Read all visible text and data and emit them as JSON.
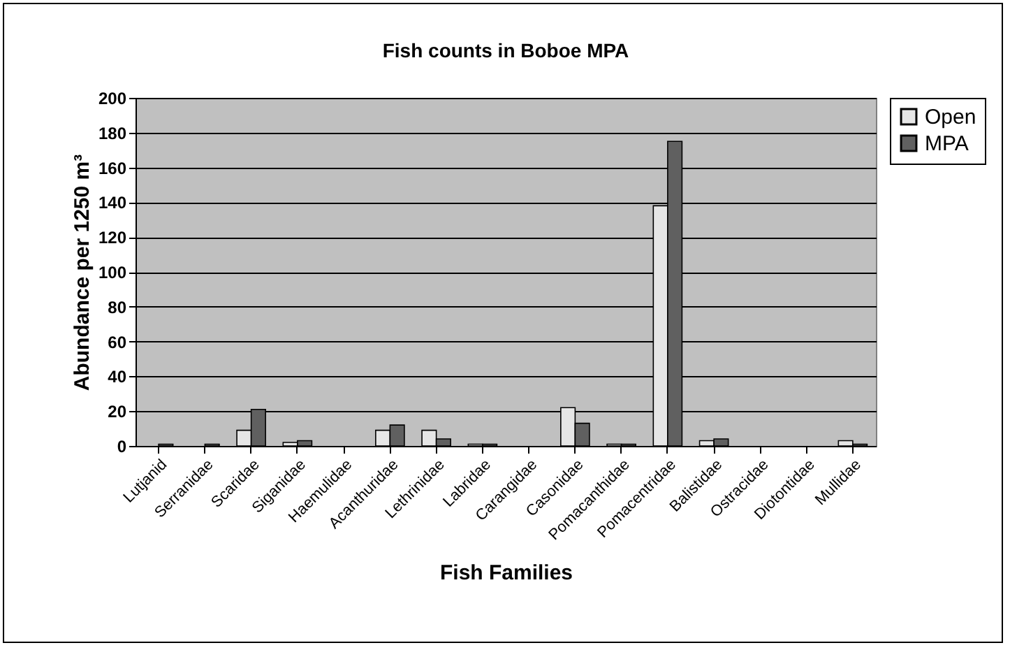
{
  "chart_data": {
    "type": "bar",
    "title": "Fish counts in Boboe MPA",
    "xlabel": "Fish Families",
    "ylabel": "Abundance per 1250 m³",
    "categories": [
      "Lutjanid",
      "Serranidae",
      "Scaridae",
      "Siganidae",
      "Haemulidae",
      "Acanthuridae",
      "Lethrinidae",
      "Labridae",
      "Carangidae",
      "Casonidae",
      "Pomacanthidae",
      "Pomacentridae",
      "Balistidae",
      "Ostracidae",
      "Diotontidae",
      "Mullidae"
    ],
    "series": [
      {
        "name": "Open",
        "color": "#e6e6e6",
        "values": [
          0,
          0,
          9,
          2,
          0,
          9,
          9,
          1,
          0,
          22,
          1,
          138,
          3,
          0,
          0,
          3
        ]
      },
      {
        "name": "MPA",
        "color": "#606060",
        "values": [
          1,
          1,
          21,
          3,
          0,
          12,
          4,
          1,
          0,
          13,
          1,
          175,
          4,
          0,
          0,
          1
        ]
      }
    ],
    "ylim": [
      0,
      200
    ],
    "yticks": [
      0,
      20,
      40,
      60,
      80,
      100,
      120,
      140,
      160,
      180,
      200
    ],
    "grid": "y",
    "legend": "right"
  }
}
